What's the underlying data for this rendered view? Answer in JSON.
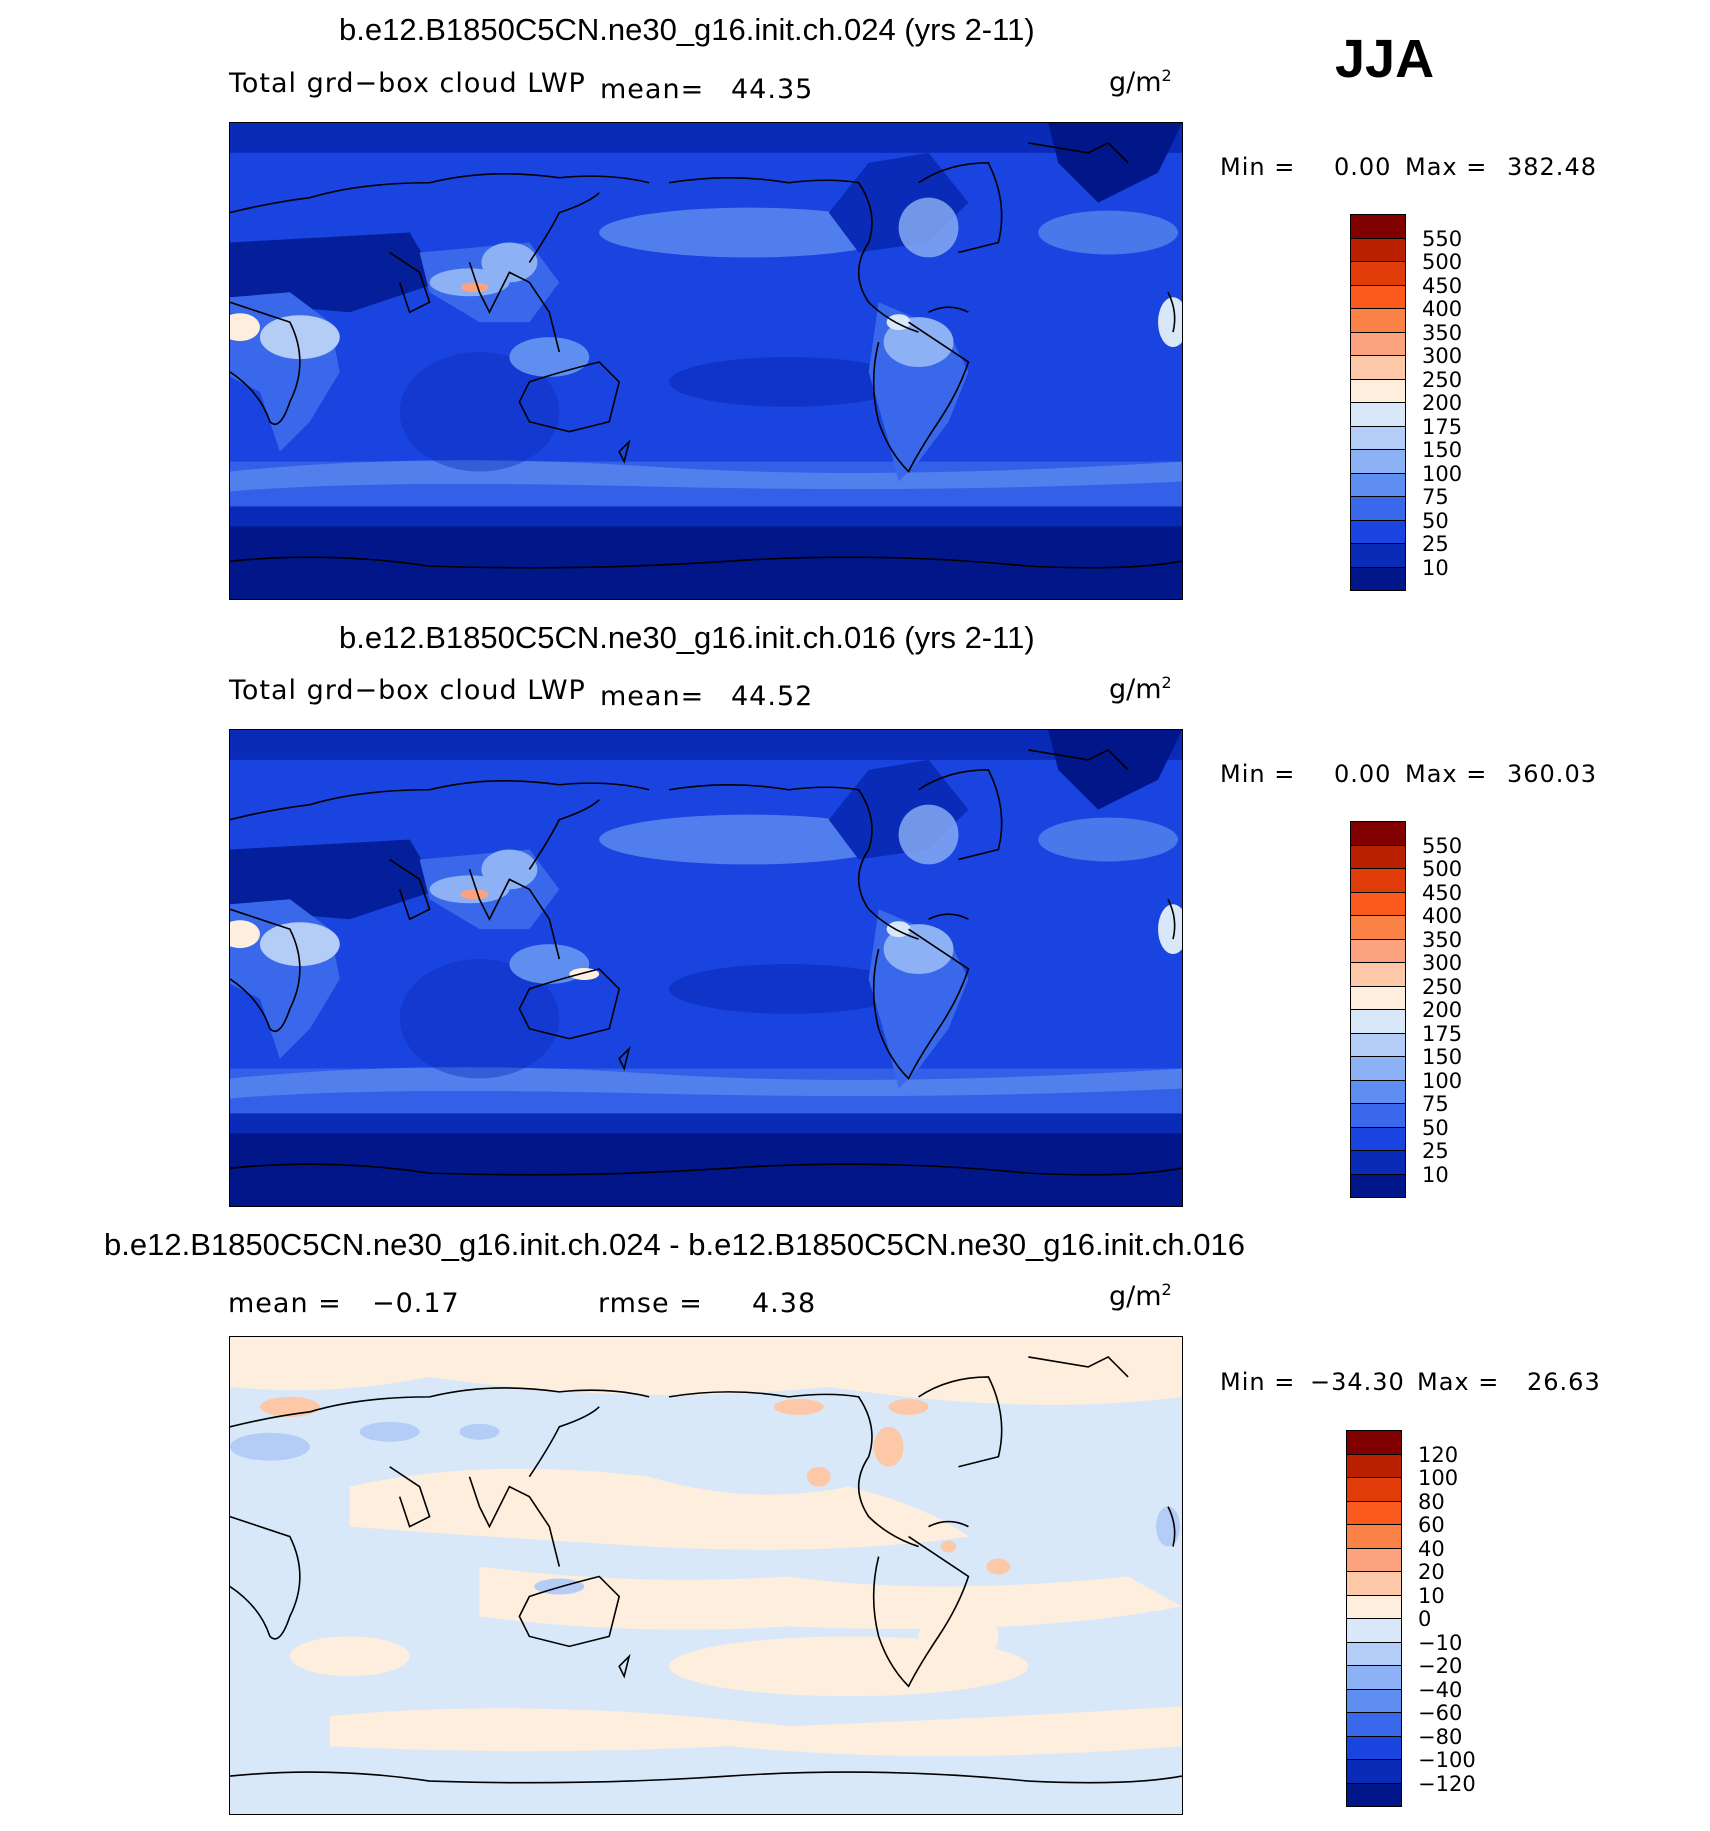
{
  "season": "JJA",
  "units_base": "g/m",
  "units_exp": "2",
  "panels": [
    {
      "title": "b.e12.B1850C5CN.ne30_g16.init.ch.024 (yrs 2-11)",
      "variable": "Total grd−box cloud LWP",
      "mean_label": "mean=",
      "mean_value": "44.35",
      "min_label": "Min =",
      "min_value": "0.00",
      "max_label": "Max =",
      "max_value": "382.48",
      "colorbar": {
        "levels": [
          "550",
          "500",
          "450",
          "400",
          "350",
          "300",
          "250",
          "200",
          "175",
          "150",
          "100",
          "75",
          "50",
          "25",
          "10"
        ],
        "colors": [
          "#800000",
          "#b82000",
          "#e03c0a",
          "#fa5a1e",
          "#fb8246",
          "#fca27e",
          "#fcc8a8",
          "#fdeede",
          "#d9e8f8",
          "#b4cdf6",
          "#8cb1f4",
          "#5e8ef0",
          "#3a68ea",
          "#1a44e0",
          "#0a2ab8",
          "#001689"
        ]
      }
    },
    {
      "title": "b.e12.B1850C5CN.ne30_g16.init.ch.016 (yrs 2-11)",
      "variable": "Total grd−box cloud LWP",
      "mean_label": "mean=",
      "mean_value": "44.52",
      "min_label": "Min =",
      "min_value": "0.00",
      "max_label": "Max =",
      "max_value": "360.03",
      "colorbar": {
        "levels": [
          "550",
          "500",
          "450",
          "400",
          "350",
          "300",
          "250",
          "200",
          "175",
          "150",
          "100",
          "75",
          "50",
          "25",
          "10"
        ],
        "colors": [
          "#800000",
          "#b82000",
          "#e03c0a",
          "#fa5a1e",
          "#fb8246",
          "#fca27e",
          "#fcc8a8",
          "#fdeede",
          "#d9e8f8",
          "#b4cdf6",
          "#8cb1f4",
          "#5e8ef0",
          "#3a68ea",
          "#1a44e0",
          "#0a2ab8",
          "#001689"
        ]
      }
    },
    {
      "title": "b.e12.B1850C5CN.ne30_g16.init.ch.024 - b.e12.B1850C5CN.ne30_g16.init.ch.016",
      "mean_label": "mean =",
      "mean_value": "−0.17",
      "rmse_label": "rmse =",
      "rmse_value": "4.38",
      "min_label": "Min =",
      "min_value": "−34.30",
      "max_label": "Max =",
      "max_value": "26.63",
      "colorbar": {
        "levels": [
          "120",
          "100",
          "80",
          "60",
          "40",
          "20",
          "10",
          "0",
          "−10",
          "−20",
          "−40",
          "−60",
          "−80",
          "−100",
          "−120"
        ],
        "colors": [
          "#800000",
          "#b82000",
          "#e03c0a",
          "#fa5a1e",
          "#fb8246",
          "#fca27e",
          "#fcc8a8",
          "#fdeede",
          "#d9e8f8",
          "#b4cdf6",
          "#8cb1f4",
          "#5e8ef0",
          "#3a68ea",
          "#1a44e0",
          "#0a2ab8",
          "#001689"
        ]
      }
    }
  ]
}
